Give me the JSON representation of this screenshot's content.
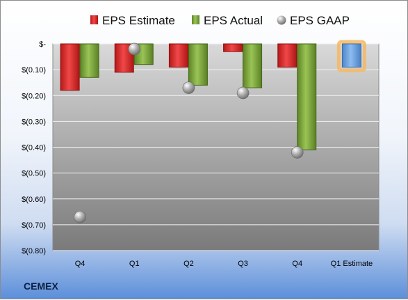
{
  "company": "CEMEX",
  "chart_data": {
    "type": "bar",
    "categories": [
      "Q4",
      "Q1",
      "Q2",
      "Q3",
      "Q4",
      "Q1 Estimate"
    ],
    "series": [
      {
        "name": "EPS Estimate",
        "kind": "bar",
        "color": "#d42a2a",
        "values": [
          -0.18,
          -0.11,
          -0.09,
          -0.03,
          -0.09,
          null
        ]
      },
      {
        "name": "EPS Actual",
        "kind": "bar",
        "color": "#7fa63c",
        "values": [
          -0.13,
          -0.08,
          -0.16,
          -0.17,
          -0.41,
          null
        ]
      },
      {
        "name": "EPS GAAP",
        "kind": "scatter",
        "color": "#a6a6a6",
        "values": [
          -0.67,
          -0.02,
          -0.17,
          -0.19,
          -0.42,
          null
        ]
      }
    ],
    "forecast": {
      "category": "Q1 Estimate",
      "value": -0.09,
      "color": "#6fa3de",
      "highlight": "#f5b860"
    },
    "y_ticks": [
      {
        "value": 0,
        "label": "$-"
      },
      {
        "value": -0.1,
        "label": "$(0.10)"
      },
      {
        "value": -0.2,
        "label": "$(0.20)"
      },
      {
        "value": -0.3,
        "label": "$(0.30)"
      },
      {
        "value": -0.4,
        "label": "$(0.40)"
      },
      {
        "value": -0.5,
        "label": "$(0.50)"
      },
      {
        "value": -0.6,
        "label": "$(0.60)"
      },
      {
        "value": -0.7,
        "label": "$(0.70)"
      },
      {
        "value": -0.8,
        "label": "$(0.80)"
      }
    ],
    "ylim": [
      -0.8,
      0
    ],
    "grid": true,
    "legend_position": "top"
  }
}
